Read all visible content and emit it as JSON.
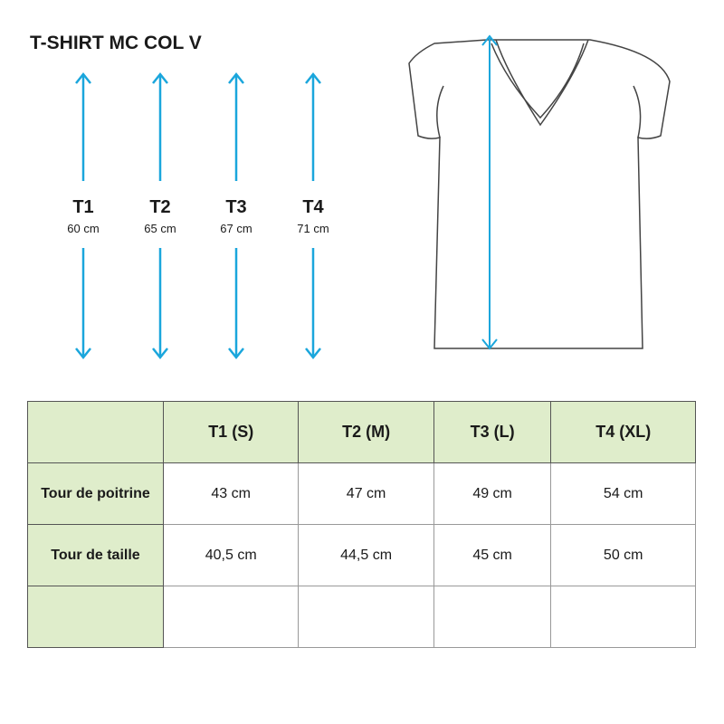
{
  "title": "T-SHIRT MC COL V",
  "accent_color": "#1aa6dc",
  "header_color": "#dfedcb",
  "lengths": [
    {
      "size": "T1",
      "value": "60 cm"
    },
    {
      "size": "T2",
      "value": "65 cm"
    },
    {
      "size": "T3",
      "value": "67 cm"
    },
    {
      "size": "T4",
      "value": "71 cm"
    }
  ],
  "table": {
    "columns": [
      "",
      "T1 (S)",
      "T2 (M)",
      "T3 (L)",
      "T4 (XL)"
    ],
    "rows": [
      {
        "label": "Tour de poitrine",
        "values": [
          "43 cm",
          "47 cm",
          "49 cm",
          "54 cm"
        ]
      },
      {
        "label": "Tour de taille",
        "values": [
          "40,5 cm",
          "44,5 cm",
          "45 cm",
          "50 cm"
        ]
      },
      {
        "label": "",
        "values": [
          "",
          "",
          "",
          ""
        ]
      }
    ]
  }
}
